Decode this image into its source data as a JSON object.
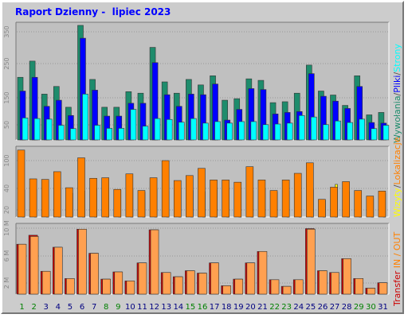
{
  "title": "Raport Dzienny -  lipiec 2023",
  "colors": {
    "frame": "#cccccc",
    "plot_bg": "#c0c0c0",
    "wywolania": "#1e8c6c",
    "pliki": "#0000ff",
    "strony": "#00ffff",
    "wizyty": "#ff8000",
    "lokalizacje": "#ffff00",
    "transfer_in": "#cc0000",
    "transfer_out": "#ffa050",
    "weekday_label": "#000080",
    "weekend_label": "#008000"
  },
  "chart_data": [
    {
      "type": "bar",
      "panel": "hits",
      "categories": [
        "1",
        "2",
        "3",
        "4",
        "5",
        "6",
        "7",
        "8",
        "9",
        "10",
        "11",
        "12",
        "13",
        "14",
        "15",
        "16",
        "17",
        "18",
        "19",
        "20",
        "21",
        "22",
        "23",
        "24",
        "25",
        "26",
        "27",
        "28",
        "29",
        "30",
        "31"
      ],
      "weekend_days": [
        "1",
        "2",
        "8",
        "9",
        "15",
        "16",
        "22",
        "23",
        "29",
        "30"
      ],
      "yticks": [
        "50",
        "150",
        "250",
        "350"
      ],
      "ylim": [
        0,
        380
      ],
      "series": [
        {
          "name": "Wywołania",
          "values": [
            205,
            258,
            150,
            175,
            107,
            375,
            198,
            107,
            107,
            158,
            153,
            303,
            190,
            153,
            198,
            180,
            210,
            130,
            135,
            200,
            195,
            122,
            125,
            153,
            245,
            160,
            147,
            113,
            210,
            82,
            90
          ]
        },
        {
          "name": "Pliki",
          "values": [
            160,
            205,
            110,
            130,
            80,
            333,
            163,
            78,
            78,
            120,
            120,
            253,
            148,
            110,
            150,
            148,
            183,
            65,
            100,
            168,
            165,
            85,
            90,
            93,
            217,
            143,
            127,
            103,
            175,
            57,
            55
          ]
        },
        {
          "name": "Strony",
          "values": [
            72,
            70,
            68,
            48,
            37,
            150,
            48,
            38,
            38,
            100,
            45,
            70,
            67,
            58,
            70,
            55,
            60,
            55,
            60,
            60,
            50,
            52,
            55,
            80,
            75,
            50,
            62,
            57,
            68,
            37,
            48
          ]
        }
      ]
    },
    {
      "type": "bar",
      "panel": "visits",
      "categories": [
        "1",
        "2",
        "3",
        "4",
        "5",
        "6",
        "7",
        "8",
        "9",
        "10",
        "11",
        "12",
        "13",
        "14",
        "15",
        "16",
        "17",
        "18",
        "19",
        "20",
        "21",
        "22",
        "23",
        "24",
        "25",
        "26",
        "27",
        "28",
        "29",
        "30",
        "31"
      ],
      "yticks": [
        "20",
        "40",
        "100"
      ],
      "ylim": [
        0,
        125
      ],
      "series": [
        {
          "name": "Wizyty",
          "values": [
            121,
            69,
            68,
            82,
            53,
            107,
            70,
            71,
            50,
            78,
            48,
            71,
            102,
            66,
            75,
            88,
            67,
            67,
            63,
            91,
            67,
            48,
            67,
            79,
            98,
            32,
            54,
            64,
            48,
            38,
            47
          ]
        },
        {
          "name": "Lokalizacje",
          "values": [
            49,
            50,
            50,
            53,
            43,
            47,
            52,
            53,
            48,
            52,
            45,
            50,
            47,
            51,
            48,
            46,
            49,
            51,
            50,
            48,
            51,
            45,
            47,
            46,
            50,
            30,
            59,
            46,
            46,
            33,
            43
          ]
        }
      ]
    },
    {
      "type": "bar",
      "panel": "transfer",
      "categories": [
        "1",
        "2",
        "3",
        "4",
        "5",
        "6",
        "7",
        "8",
        "9",
        "10",
        "11",
        "12",
        "13",
        "14",
        "15",
        "16",
        "17",
        "18",
        "19",
        "20",
        "21",
        "22",
        "23",
        "24",
        "25",
        "26",
        "27",
        "28",
        "29",
        "30",
        "31"
      ],
      "yticks": [
        "2 M",
        "6 M",
        "10 M"
      ],
      "ylim": [
        0,
        11.5
      ],
      "series": [
        {
          "name": "Transfer IN",
          "values": [
            8.3,
            9.8,
            3.8,
            7.8,
            2.6,
            10.8,
            6.8,
            2.5,
            3.7,
            2.2,
            5.2,
            10.7,
            3.6,
            2.9,
            3.9,
            3.5,
            5.2,
            1.4,
            2.5,
            5.2,
            7.1,
            2.4,
            1.3,
            2.4,
            10.9,
            3.9,
            3.6,
            5.9,
            2.6,
            1.0,
            1.9
          ]
        },
        {
          "name": "Transfer OUT",
          "values": [
            8.3,
            9.6,
            3.8,
            7.8,
            2.6,
            10.8,
            6.8,
            2.5,
            3.7,
            2.2,
            5.2,
            10.7,
            3.6,
            2.9,
            3.9,
            3.5,
            5.2,
            1.4,
            2.5,
            5.2,
            7.1,
            2.4,
            1.3,
            2.4,
            10.8,
            3.9,
            3.6,
            5.9,
            2.6,
            1.0,
            1.9
          ]
        }
      ]
    }
  ],
  "legend": {
    "hits": [
      {
        "text": "Wywołania",
        "color": "#1e8c6c"
      },
      {
        "text": "/",
        "color": "#555555"
      },
      {
        "text": "Pliki",
        "color": "#0000ff"
      },
      {
        "text": "/",
        "color": "#555555"
      },
      {
        "text": "Strony",
        "color": "#00ffff"
      }
    ],
    "visits": [
      {
        "text": "Wizyty",
        "color": "#ffff00"
      },
      {
        "text": "/",
        "color": "#555555"
      },
      {
        "text": "Lokalizacje",
        "color": "#ff8000"
      }
    ],
    "transfer": [
      {
        "text": "Transfer",
        "color": "#cc0000"
      },
      {
        "text": " IN / OUT",
        "color": "#ff8000"
      }
    ]
  }
}
